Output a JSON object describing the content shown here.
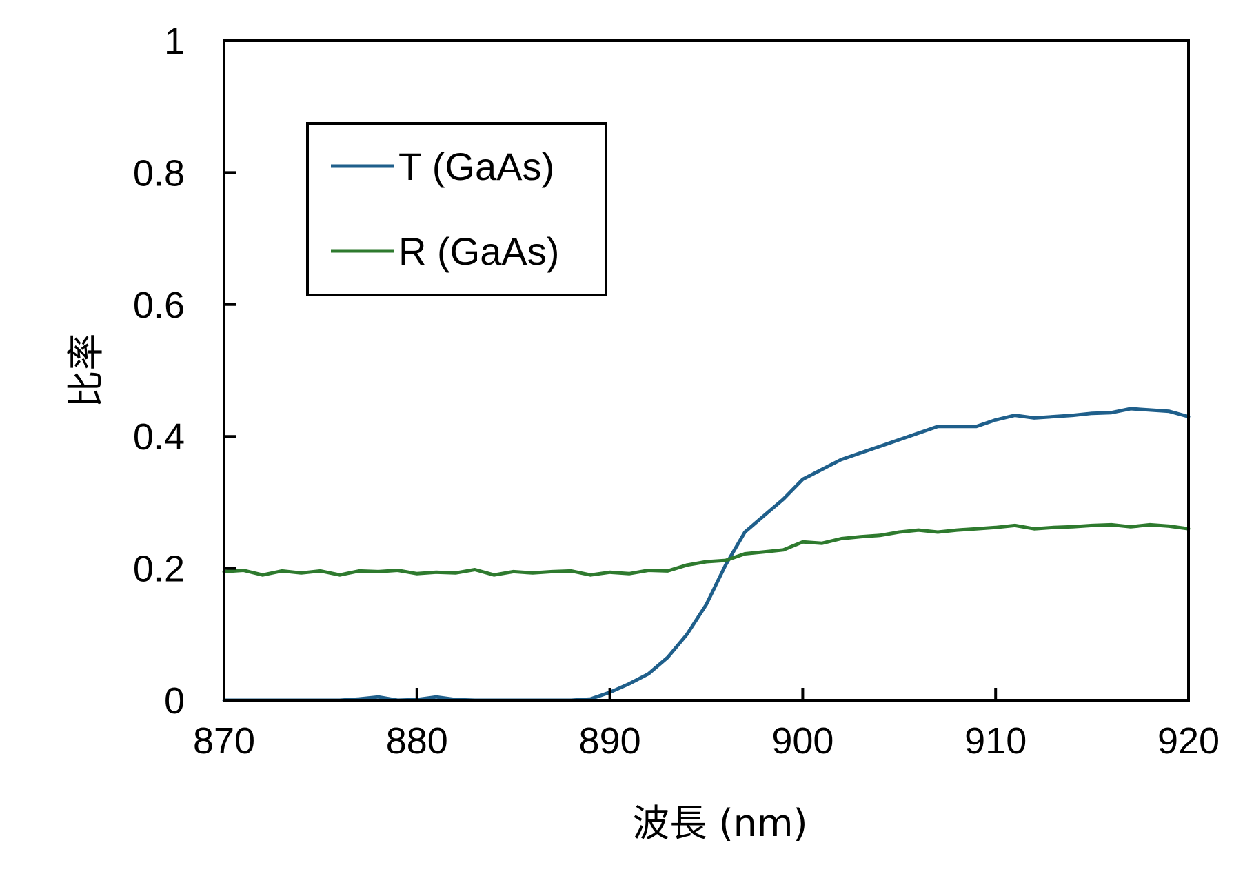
{
  "chart_data": {
    "type": "line",
    "title": "",
    "xlabel": "波長 (nm)",
    "ylabel": "比率",
    "xlim": [
      870,
      920
    ],
    "ylim": [
      0,
      1
    ],
    "xticks": [
      870,
      880,
      890,
      900,
      910,
      920
    ],
    "yticks": [
      0,
      0.2,
      0.4,
      0.6,
      0.8,
      1
    ],
    "ytick_labels": [
      "0",
      "0.2",
      "0.4",
      "0.6",
      "0.8",
      "1"
    ],
    "grid": false,
    "legend": {
      "placement": "top-left"
    },
    "series": [
      {
        "name": "T (GaAs)",
        "color": "#1f5f8b",
        "x": [
          870,
          871,
          872,
          873,
          874,
          875,
          876,
          877,
          878,
          879,
          880,
          881,
          882,
          883,
          884,
          885,
          886,
          887,
          888,
          889,
          890,
          891,
          892,
          893,
          894,
          895,
          896,
          897,
          898,
          899,
          900,
          901,
          902,
          903,
          904,
          905,
          906,
          907,
          908,
          909,
          910,
          911,
          912,
          913,
          914,
          915,
          916,
          917,
          918,
          919,
          920
        ],
        "y": [
          0.0,
          0.0,
          0.0,
          0.0,
          0.0,
          0.0,
          0.0,
          0.002,
          0.005,
          0.0,
          0.001,
          0.005,
          0.001,
          0.0,
          0.0,
          0.0,
          0.0,
          0.0,
          0.0,
          0.002,
          0.012,
          0.025,
          0.04,
          0.065,
          0.1,
          0.145,
          0.205,
          0.255,
          0.28,
          0.305,
          0.335,
          0.35,
          0.365,
          0.375,
          0.385,
          0.395,
          0.405,
          0.415,
          0.415,
          0.415,
          0.425,
          0.432,
          0.428,
          0.43,
          0.432,
          0.435,
          0.436,
          0.442,
          0.44,
          0.438,
          0.43
        ]
      },
      {
        "name": "R (GaAs)",
        "color": "#2e7a2e",
        "x": [
          870,
          871,
          872,
          873,
          874,
          875,
          876,
          877,
          878,
          879,
          880,
          881,
          882,
          883,
          884,
          885,
          886,
          887,
          888,
          889,
          890,
          891,
          892,
          893,
          894,
          895,
          896,
          897,
          898,
          899,
          900,
          901,
          902,
          903,
          904,
          905,
          906,
          907,
          908,
          909,
          910,
          911,
          912,
          913,
          914,
          915,
          916,
          917,
          918,
          919,
          920
        ],
        "y": [
          0.195,
          0.197,
          0.19,
          0.196,
          0.193,
          0.196,
          0.19,
          0.196,
          0.195,
          0.197,
          0.192,
          0.194,
          0.193,
          0.198,
          0.19,
          0.195,
          0.193,
          0.195,
          0.196,
          0.19,
          0.194,
          0.192,
          0.197,
          0.196,
          0.205,
          0.21,
          0.212,
          0.222,
          0.225,
          0.228,
          0.24,
          0.238,
          0.245,
          0.248,
          0.25,
          0.255,
          0.258,
          0.255,
          0.258,
          0.26,
          0.262,
          0.265,
          0.26,
          0.262,
          0.263,
          0.265,
          0.266,
          0.263,
          0.266,
          0.264,
          0.26
        ]
      }
    ]
  }
}
